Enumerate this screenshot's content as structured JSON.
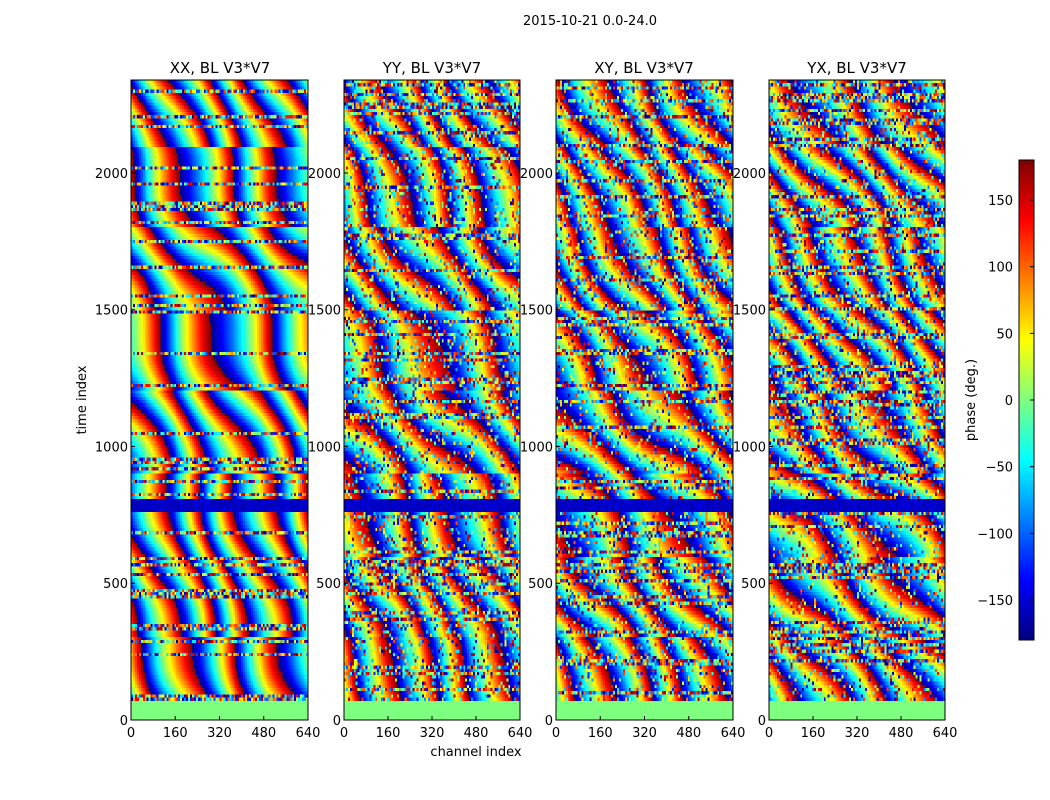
{
  "chart_data": {
    "type": "heatmap",
    "suptitle": "2015-10-21 0.0-24.0",
    "xlabel": "channel index",
    "ylabel": "time index",
    "xlim": [
      0,
      640
    ],
    "ylim": [
      0,
      2340
    ],
    "xticks": [
      "0",
      "160",
      "320",
      "480",
      "640"
    ],
    "yticks": [
      "0",
      "500",
      "1000",
      "1500",
      "2000"
    ],
    "colorbar": {
      "label": "phase (deg.)",
      "range": [
        -180,
        180
      ],
      "ticks": [
        "−150",
        "−100",
        "−50",
        "0",
        "50",
        "100",
        "150"
      ],
      "colormap": [
        "#00007f",
        "#0000ff",
        "#007fff",
        "#00ffff",
        "#7fff7f",
        "#ffff00",
        "#ff7f00",
        "#ff0000",
        "#7f0000"
      ]
    },
    "flag_color": "#7fff7f",
    "flagged_time_range": [
      0,
      65
    ],
    "panels": [
      {
        "title": "XX, BL V3*V7"
      },
      {
        "title": "YY, BL V3*V7"
      },
      {
        "title": "XY, BL V3*V7"
      },
      {
        "title": "YX, BL V3*V7"
      }
    ]
  }
}
